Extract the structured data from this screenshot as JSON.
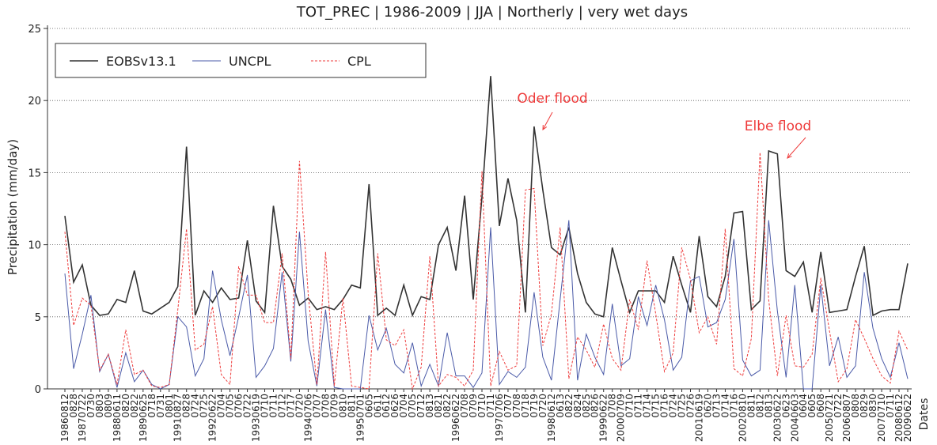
{
  "chart_data": {
    "type": "line",
    "title": "TOT_PREC  |  1986-2009  | JJA |  Northerly  | very wet days",
    "y_label": "Precipitation (mm/day)",
    "x_label": "Dates",
    "categories": [
      "19860812",
      "0828",
      "19870722",
      "0730",
      "0803",
      "0809",
      "19880611",
      "0820",
      "0822",
      "19890625",
      "0718",
      "0731",
      "0801",
      "19910827",
      "0828",
      "0724",
      "0725",
      "19920622",
      "0704",
      "0705",
      "0706",
      "0722",
      "19930619",
      "0710",
      "0711",
      "0712",
      "0717",
      "0720",
      "19940706",
      "0707",
      "0708",
      "0709",
      "0810",
      "0811",
      "19950701",
      "0605",
      "0611",
      "0612",
      "0626",
      "0704",
      "0705",
      "0712",
      "0813",
      "0821",
      "0822",
      "19960622",
      "0708",
      "0709",
      "0710",
      "0711",
      "19970706",
      "0707",
      "0708",
      "0718",
      "0719",
      "0720",
      "19980612",
      "0613",
      "0822",
      "0824",
      "0825",
      "0826",
      "19990622",
      "0708",
      "20000709",
      "0710",
      "0711",
      "0714",
      "0715",
      "0716",
      "0724",
      "0725",
      "0726",
      "20010619",
      "0620",
      "0713",
      "0714",
      "0716",
      "20020810",
      "0811",
      "0812",
      "0813",
      "20030622",
      "0623",
      "20040603",
      "0604",
      "0605",
      "0608",
      "20050721",
      "0722",
      "20060807",
      "0808",
      "0829",
      "0830",
      "20070710",
      "0711",
      "20080612",
      "20090622"
    ],
    "series": [
      {
        "name": "EOBSv13.1",
        "color": "#333333",
        "dash": false,
        "values": [
          12.0,
          7.4,
          8.6,
          5.8,
          5.1,
          5.2,
          6.2,
          6.0,
          8.2,
          5.4,
          5.2,
          5.6,
          6.0,
          7.1,
          16.8,
          5.1,
          6.8,
          6.0,
          7.0,
          6.2,
          6.3,
          10.3,
          6.1,
          5.3,
          12.7,
          8.5,
          7.6,
          5.8,
          6.3,
          5.5,
          5.7,
          5.5,
          6.2,
          7.2,
          7.0,
          14.2,
          5.1,
          5.6,
          5.1,
          7.2,
          5.1,
          6.4,
          6.2,
          10.0,
          11.2,
          8.2,
          13.4,
          6.2,
          13.3,
          21.7,
          11.3,
          14.6,
          11.7,
          5.3,
          18.2,
          13.8,
          9.8,
          9.3,
          11.2,
          8.0,
          6.0,
          5.2,
          5.0,
          9.8,
          7.5,
          5.3,
          6.8,
          6.8,
          6.8,
          6.0,
          9.2,
          7.2,
          5.3,
          10.6,
          6.4,
          5.7,
          7.8,
          12.2,
          12.3,
          5.5,
          6.1,
          16.5,
          16.3,
          8.2,
          7.8,
          8.8,
          5.3,
          9.5,
          5.3,
          5.4,
          5.5,
          7.8,
          9.9,
          5.1,
          5.4,
          5.5,
          5.5,
          8.7
        ]
      },
      {
        "name": "UNCPL",
        "color": "#4a5aa8",
        "dash": false,
        "values": [
          8.0,
          1.4,
          3.8,
          6.5,
          1.2,
          2.4,
          0.1,
          2.5,
          0.5,
          1.3,
          0.3,
          0.0,
          0.3,
          5.0,
          4.3,
          0.9,
          2.1,
          8.2,
          4.8,
          2.3,
          5.0,
          7.9,
          0.8,
          1.6,
          2.8,
          8.1,
          1.9,
          10.9,
          3.3,
          0.2,
          5.5,
          0.1,
          0.0,
          0.0,
          0.0,
          5.1,
          2.7,
          4.2,
          1.7,
          1.1,
          3.2,
          0.2,
          1.7,
          0.2,
          3.9,
          0.9,
          0.9,
          0.1,
          1.1,
          11.2,
          0.3,
          1.2,
          0.8,
          1.5,
          6.7,
          2.2,
          0.6,
          6.2,
          11.7,
          0.6,
          3.8,
          2.2,
          1.0,
          5.9,
          1.6,
          2.1,
          6.4,
          4.4,
          7.2,
          4.8,
          1.3,
          2.2,
          7.5,
          7.8,
          4.3,
          4.6,
          6.2,
          10.4,
          2.0,
          0.9,
          1.3,
          11.7,
          5.4,
          0.8,
          7.2,
          0.0,
          0.0,
          7.2,
          1.6,
          3.6,
          0.8,
          1.6,
          8.1,
          4.2,
          2.1,
          0.8,
          3.2,
          0.7
        ]
      },
      {
        "name": "CPL",
        "color": "#ee3b3b",
        "dash": true,
        "values": [
          10.9,
          4.4,
          6.3,
          5.8,
          1.3,
          2.4,
          0.3,
          4.1,
          1.0,
          1.3,
          0.2,
          0.1,
          0.3,
          5.5,
          11.1,
          2.7,
          3.1,
          5.7,
          1.0,
          0.3,
          8.5,
          6.5,
          6.5,
          4.6,
          4.6,
          9.4,
          2.1,
          15.8,
          6.6,
          0.3,
          9.5,
          0.2,
          6.3,
          0.2,
          0.1,
          0.0,
          9.4,
          3.4,
          3.0,
          4.1,
          0.0,
          1.5,
          9.2,
          0.2,
          1.0,
          0.8,
          0.2,
          1.3,
          15.1,
          0.2,
          2.6,
          1.3,
          1.6,
          13.8,
          13.9,
          3.0,
          5.2,
          11.2,
          0.7,
          3.6,
          2.7,
          1.5,
          4.5,
          2.1,
          1.3,
          6.2,
          4.1,
          8.9,
          5.2,
          1.2,
          2.5,
          9.8,
          7.6,
          3.9,
          5.0,
          3.1,
          11.1,
          1.4,
          0.9,
          3.5,
          16.4,
          6.2,
          0.9,
          5.1,
          1.6,
          1.5,
          2.4,
          7.7,
          4.0,
          0.5,
          1.4,
          4.8,
          3.5,
          2.1,
          0.9,
          0.4,
          4.0,
          2.7
        ]
      }
    ],
    "annotations": [
      {
        "text": "Oder flood",
        "color": "#ee3b3b"
      },
      {
        "text": "Elbe flood",
        "color": "#ee3b3b"
      }
    ],
    "ylim": [
      0,
      25
    ],
    "yticks": [
      0,
      5,
      10,
      15,
      20,
      25
    ],
    "grid": true,
    "legend": "upper left"
  }
}
